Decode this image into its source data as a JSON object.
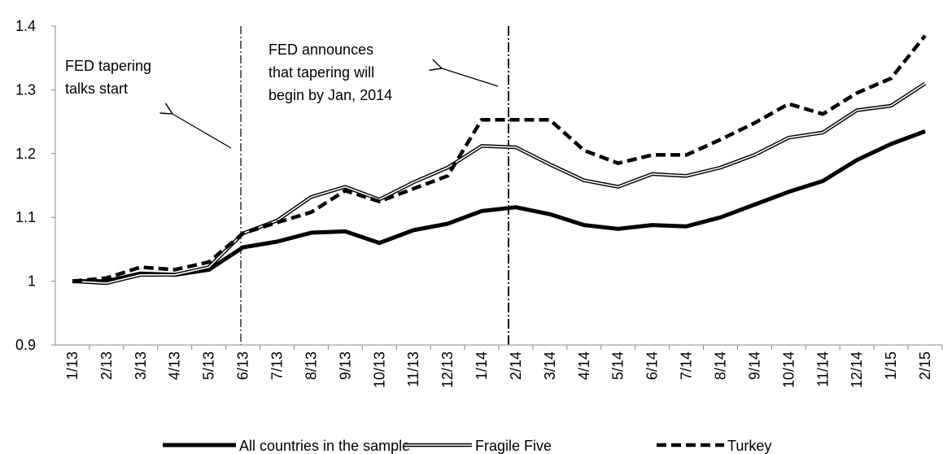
{
  "chart_data": {
    "type": "line",
    "categories": [
      "1/13",
      "2/13",
      "3/13",
      "4/13",
      "5/13",
      "6/13",
      "7/13",
      "8/13",
      "9/13",
      "10/13",
      "11/13",
      "12/13",
      "1/14",
      "2/14",
      "3/14",
      "4/14",
      "5/14",
      "6/14",
      "7/14",
      "8/14",
      "9/14",
      "10/14",
      "11/14",
      "12/14",
      "1/15",
      "2/15"
    ],
    "series": [
      {
        "name": "All countries in the sample",
        "color": "#000000",
        "style": "solid",
        "values": [
          1.0,
          1.0,
          1.012,
          1.01,
          1.018,
          1.053,
          1.062,
          1.076,
          1.078,
          1.06,
          1.08,
          1.09,
          1.11,
          1.116,
          1.105,
          1.088,
          1.082,
          1.088,
          1.086,
          1.1,
          1.12,
          1.14,
          1.157,
          1.19,
          1.215,
          1.235
        ]
      },
      {
        "name": "Fragile Five",
        "color": "#000000",
        "style": "double",
        "values": [
          1.0,
          0.997,
          1.01,
          1.01,
          1.022,
          1.075,
          1.095,
          1.132,
          1.148,
          1.128,
          1.155,
          1.178,
          1.212,
          1.21,
          1.183,
          1.158,
          1.148,
          1.168,
          1.165,
          1.178,
          1.198,
          1.225,
          1.233,
          1.268,
          1.275,
          1.31
        ]
      },
      {
        "name": "Turkey",
        "color": "#000000",
        "style": "dashed",
        "values": [
          1.0,
          1.005,
          1.022,
          1.018,
          1.03,
          1.075,
          1.092,
          1.108,
          1.142,
          1.125,
          1.145,
          1.165,
          1.253,
          1.253,
          1.253,
          1.205,
          1.185,
          1.198,
          1.198,
          1.222,
          1.248,
          1.278,
          1.262,
          1.295,
          1.318,
          1.385
        ]
      }
    ],
    "ylim": [
      0.9,
      1.4
    ],
    "yticks": [
      0.9,
      1,
      1.1,
      1.2,
      1.3,
      1.4
    ],
    "grid": false,
    "legend": "bottom",
    "annotations": [
      {
        "lines": [
          "FED tapering",
          "talks start"
        ]
      },
      {
        "lines": [
          "FED announces",
          "that tapering will",
          "begin by Jan, 2014"
        ]
      }
    ]
  }
}
